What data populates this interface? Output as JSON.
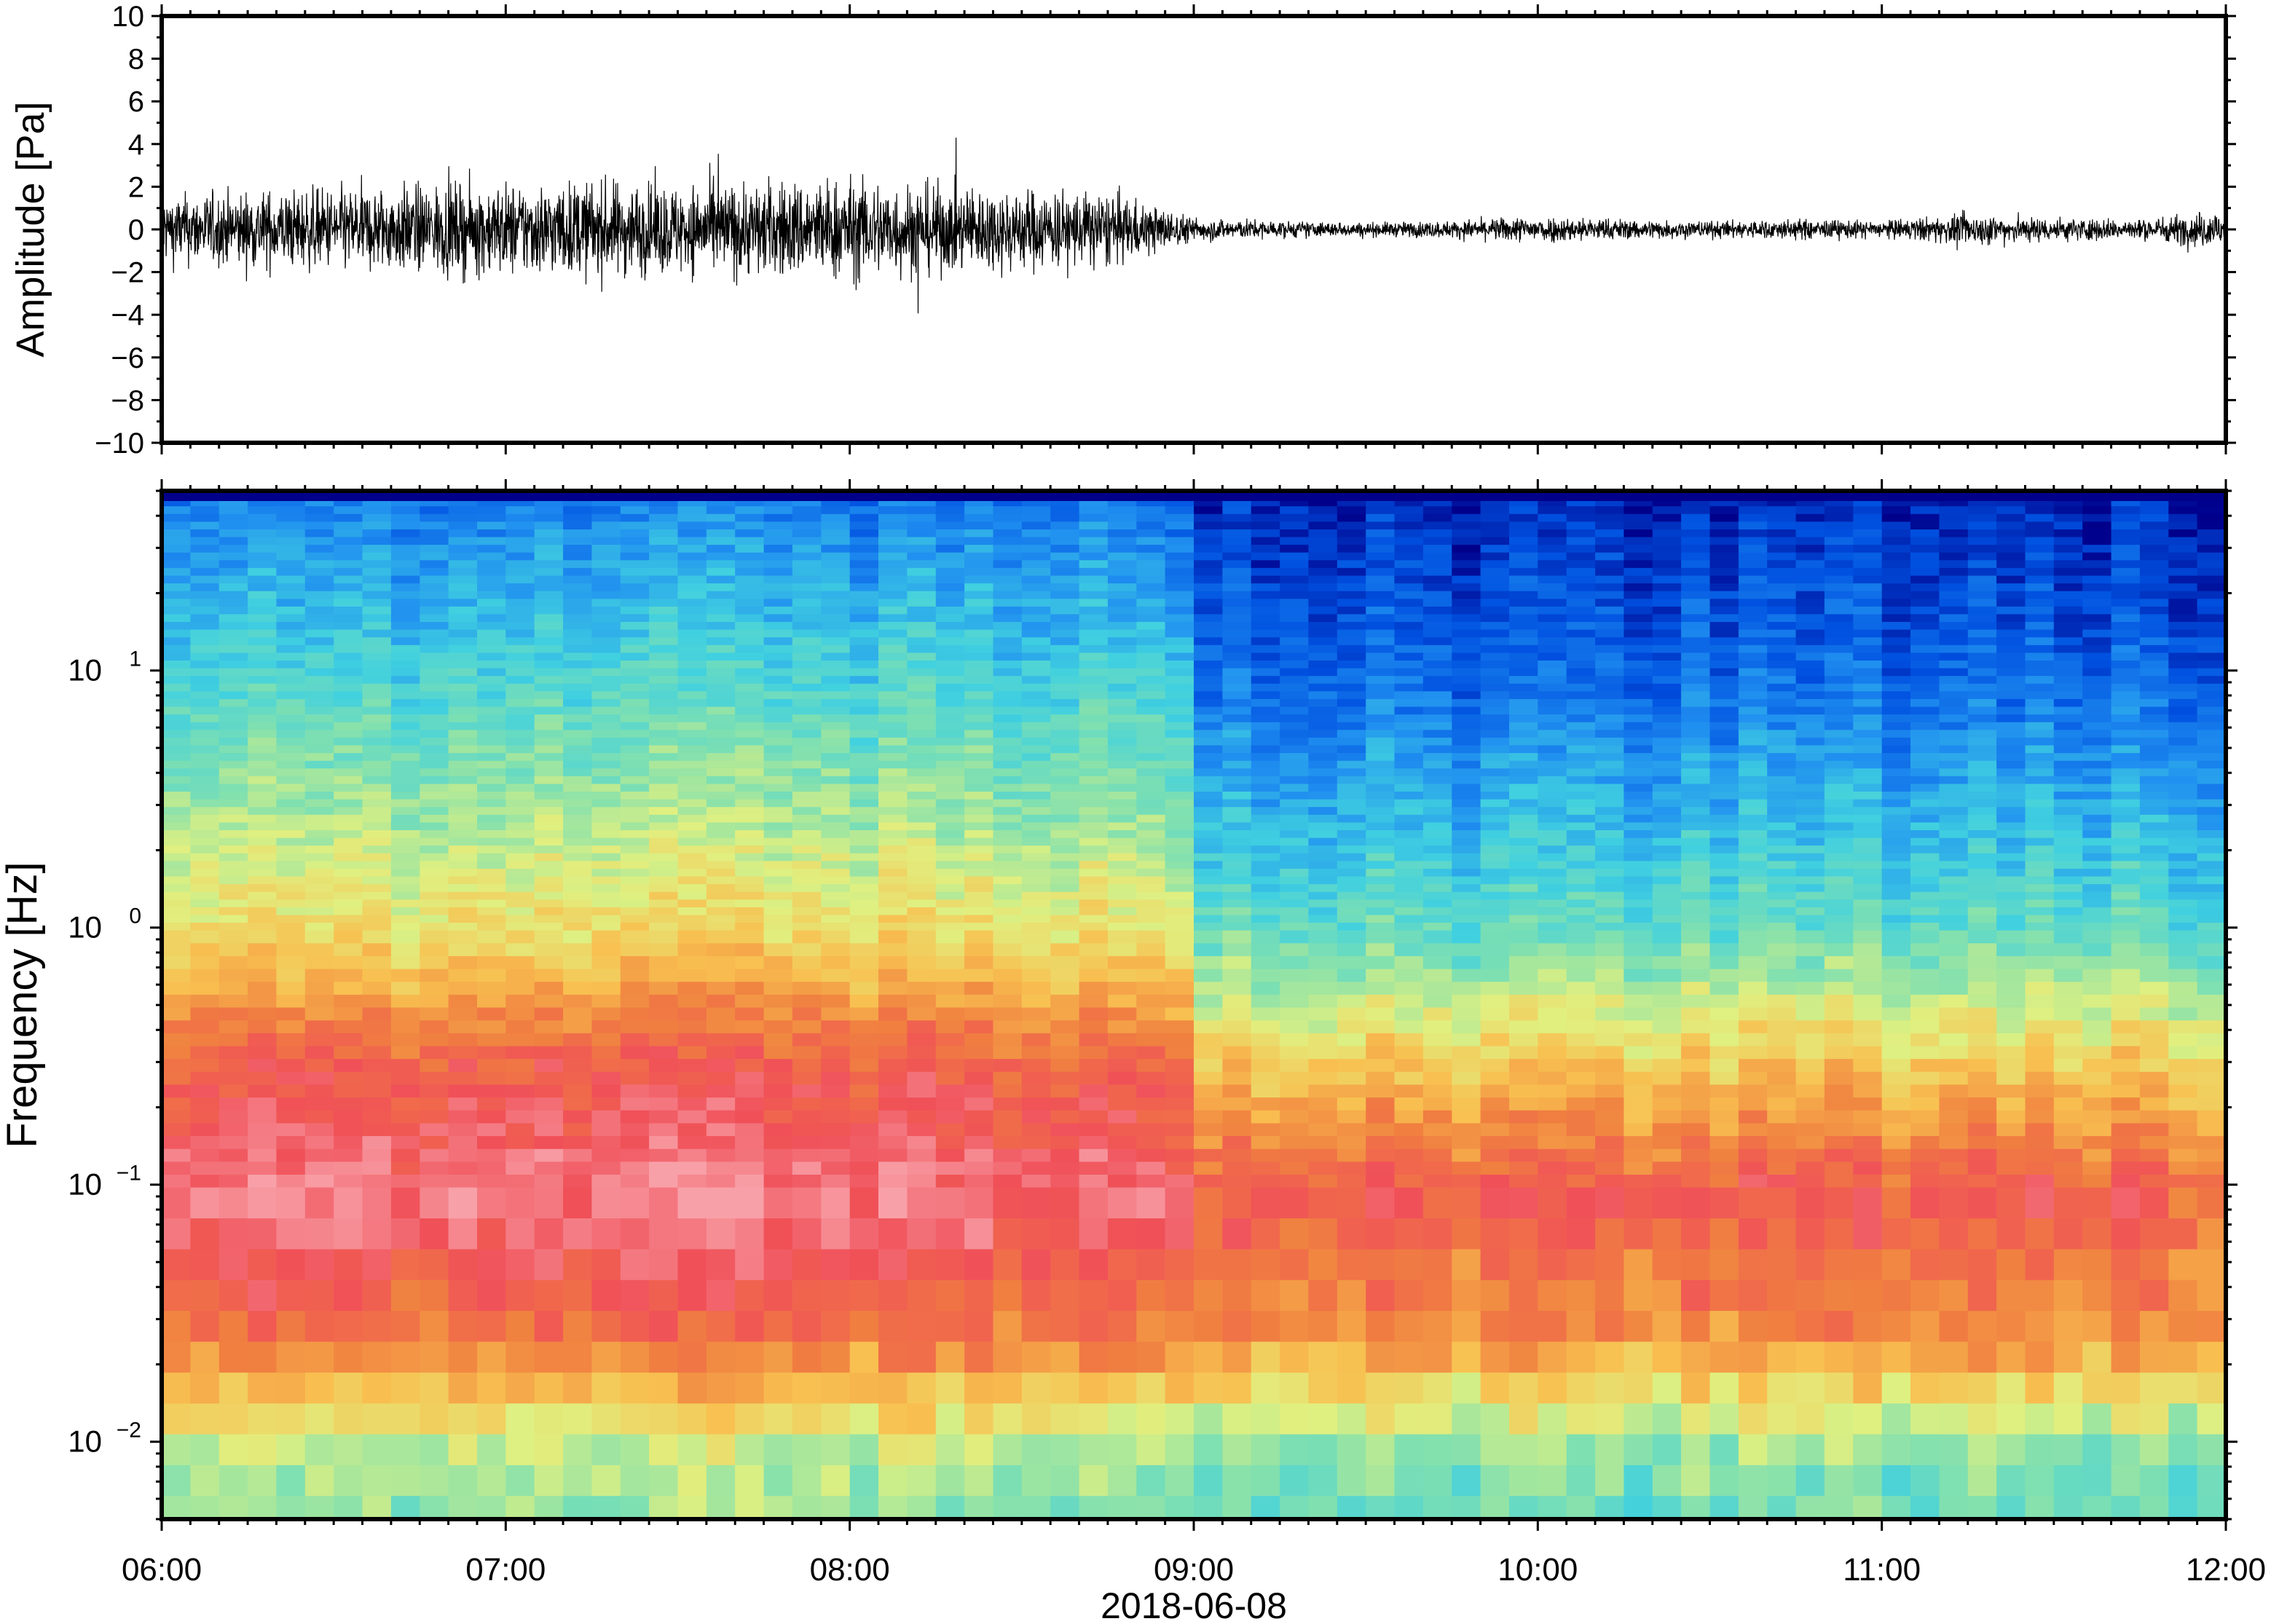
{
  "figure": {
    "date_label": "2018-06-08"
  },
  "chart_data": [
    {
      "type": "line",
      "panel": "waveform",
      "xlabel": "",
      "ylabel": "Amplitude [Pa]",
      "x_range": [
        "06:00",
        "12:00"
      ],
      "x_ticks": [
        "06:00",
        "07:00",
        "08:00",
        "09:00",
        "10:00",
        "11:00",
        "12:00"
      ],
      "ylim": [
        -10,
        10
      ],
      "y_ticks": [
        10,
        8,
        6,
        4,
        2,
        0,
        -2,
        -4,
        -6,
        -8,
        -10
      ],
      "y_tick_labels": [
        "10",
        "8",
        "6",
        "4",
        "2",
        "0",
        "−2",
        "−4",
        "−6",
        "−8",
        "−10"
      ],
      "grid": false,
      "series": [
        {
          "color": "#000000",
          "envelope_note_x": [
            "06:00",
            "06:15",
            "06:30",
            "06:45",
            "07:00",
            "07:15",
            "07:30",
            "07:45",
            "08:00",
            "08:15",
            "08:30",
            "08:45",
            "09:00",
            "09:15",
            "09:30",
            "09:45",
            "10:00",
            "10:15",
            "10:30",
            "10:45",
            "11:00",
            "11:15",
            "11:30",
            "11:45",
            "12:00"
          ],
          "amplitude_envelope": [
            2.0,
            2.2,
            2.4,
            2.6,
            2.7,
            2.8,
            2.6,
            2.8,
            3.0,
            2.6,
            2.4,
            2.2,
            0.7,
            0.5,
            0.4,
            0.5,
            0.8,
            0.6,
            0.5,
            0.6,
            0.5,
            0.9,
            0.7,
            0.6,
            1.2
          ],
          "peak_max": 4.3,
          "peak_min": -4.8
        }
      ]
    },
    {
      "type": "heatmap",
      "panel": "spectrogram",
      "xlabel": "2018-06-08",
      "ylabel": "Frequency [Hz]",
      "x_range": [
        "06:00",
        "12:00"
      ],
      "x_ticks": [
        "06:00",
        "07:00",
        "08:00",
        "09:00",
        "10:00",
        "11:00",
        "12:00"
      ],
      "y_scale": "log",
      "ylim": [
        0.005,
        50
      ],
      "y_ticks": [
        0.01,
        0.1,
        1,
        10
      ],
      "y_tick_labels": [
        {
          "base": "10",
          "exp": "−2"
        },
        {
          "base": "10",
          "exp": "−1"
        },
        {
          "base": "10",
          "exp": "0"
        },
        {
          "base": "10",
          "exp": "1"
        }
      ],
      "colormap": [
        "#00008b",
        "#0050e0",
        "#2090f0",
        "#40d0e0",
        "#80e0b0",
        "#e0f080",
        "#f8c050",
        "#f08040",
        "#f05058",
        "#f8a0a8"
      ],
      "grid": false,
      "x": [
        "06:00",
        "06:30",
        "07:00",
        "07:30",
        "08:00",
        "08:30",
        "09:00",
        "09:30",
        "10:00",
        "10:30",
        "11:00",
        "11:30",
        "12:00"
      ],
      "band_notes": {
        "y_hz": [
          50,
          10,
          1,
          0.3,
          0.1,
          0.03,
          0.01
        ],
        "relative_level_06_09": [
          0.18,
          0.35,
          0.6,
          0.85,
          0.95,
          0.8,
          0.5
        ],
        "relative_level_09_12": [
          0.05,
          0.15,
          0.4,
          0.65,
          0.85,
          0.75,
          0.45
        ]
      }
    }
  ]
}
